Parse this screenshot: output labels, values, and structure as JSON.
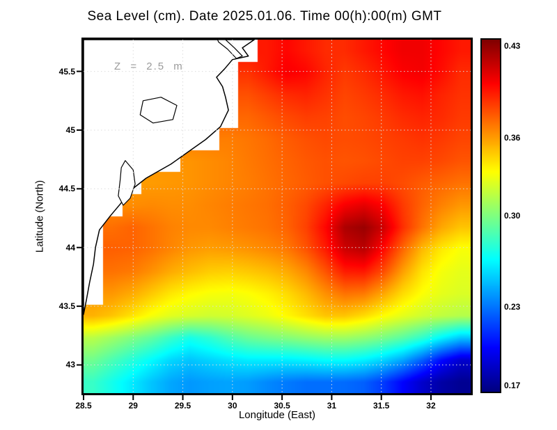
{
  "title": "Sea Level (cm). Date 2025.01.06. Time 00(h):00(m) GMT",
  "annotation": "Z = 2.5 m",
  "chart_data": {
    "type": "heatmap",
    "title": "Sea Level (cm). Date 2025.01.06. Time 00(h):00(m) GMT",
    "xlabel": "Longitude (East)",
    "ylabel": "Latitude (North)",
    "xlim": [
      28.5,
      32.4
    ],
    "ylim": [
      42.76,
      45.77
    ],
    "xticks": [
      28.5,
      29,
      29.5,
      30,
      30.5,
      31,
      31.5,
      32
    ],
    "yticks": [
      43,
      43.5,
      44,
      44.5,
      45,
      45.5
    ],
    "grid": true,
    "colormap": "jet",
    "colorbar": {
      "vmin": 0.165,
      "vmax": 0.435,
      "ticks": [
        0.43,
        0.36,
        0.3,
        0.23,
        0.17
      ]
    },
    "nx": 20,
    "ny": 16,
    "values": [
      [
        null,
        null,
        null,
        null,
        null,
        null,
        null,
        null,
        null,
        0.395,
        0.4,
        0.395,
        0.39,
        0.39,
        0.395,
        0.4,
        0.405,
        0.405,
        0.4,
        0.395
      ],
      [
        null,
        null,
        null,
        null,
        null,
        null,
        null,
        null,
        0.388,
        0.395,
        0.403,
        0.4,
        0.392,
        0.386,
        0.39,
        0.396,
        0.402,
        0.404,
        0.398,
        0.39
      ],
      [
        null,
        null,
        null,
        null,
        null,
        null,
        null,
        null,
        0.38,
        0.385,
        0.39,
        0.392,
        0.388,
        0.383,
        0.386,
        0.39,
        0.395,
        0.397,
        0.392,
        0.388
      ],
      [
        null,
        null,
        null,
        null,
        null,
        null,
        null,
        null,
        0.374,
        0.378,
        0.382,
        0.385,
        0.384,
        0.381,
        0.383,
        0.386,
        0.39,
        0.392,
        0.39,
        0.386
      ],
      [
        null,
        null,
        null,
        null,
        null,
        null,
        null,
        0.368,
        0.37,
        0.373,
        0.377,
        0.38,
        0.382,
        0.381,
        0.382,
        0.384,
        0.386,
        0.388,
        0.386,
        0.383
      ],
      [
        null,
        null,
        null,
        null,
        null,
        0.362,
        0.364,
        0.366,
        0.369,
        0.372,
        0.375,
        0.378,
        0.38,
        0.379,
        0.38,
        0.382,
        0.384,
        0.384,
        0.382,
        0.379
      ],
      [
        null,
        null,
        null,
        0.36,
        0.361,
        0.362,
        0.364,
        0.366,
        0.368,
        0.371,
        0.374,
        0.377,
        0.38,
        0.382,
        0.384,
        0.384,
        0.381,
        0.377,
        0.374,
        0.371
      ],
      [
        null,
        null,
        0.364,
        0.365,
        0.364,
        0.364,
        0.366,
        0.368,
        0.37,
        0.372,
        0.376,
        0.382,
        0.392,
        0.403,
        0.408,
        0.401,
        0.386,
        0.375,
        0.367,
        0.361
      ],
      [
        null,
        0.372,
        0.375,
        0.371,
        0.367,
        0.365,
        0.365,
        0.367,
        0.369,
        0.371,
        0.375,
        0.384,
        0.4,
        0.423,
        0.428,
        0.414,
        0.389,
        0.371,
        0.357,
        0.349
      ],
      [
        null,
        0.376,
        0.375,
        0.371,
        0.366,
        0.361,
        0.359,
        0.36,
        0.362,
        0.365,
        0.369,
        0.379,
        0.394,
        0.414,
        0.419,
        0.399,
        0.374,
        0.352,
        0.339,
        0.332
      ],
      [
        null,
        0.371,
        0.369,
        0.363,
        0.356,
        0.351,
        0.347,
        0.346,
        0.348,
        0.351,
        0.356,
        0.365,
        0.379,
        0.394,
        0.395,
        0.381,
        0.359,
        0.341,
        0.331,
        0.327
      ],
      [
        null,
        0.361,
        0.356,
        0.348,
        0.34,
        0.335,
        0.332,
        0.331,
        0.333,
        0.337,
        0.343,
        0.352,
        0.363,
        0.371,
        0.369,
        0.357,
        0.343,
        0.333,
        0.327,
        0.324
      ],
      [
        0.354,
        0.349,
        0.341,
        0.332,
        0.326,
        0.323,
        0.321,
        0.322,
        0.325,
        0.329,
        0.335,
        0.342,
        0.349,
        0.349,
        0.343,
        0.334,
        0.327,
        0.321,
        0.317,
        0.314
      ],
      [
        0.315,
        0.308,
        0.3,
        0.292,
        0.281,
        0.272,
        0.278,
        0.287,
        0.294,
        0.298,
        0.301,
        0.305,
        0.308,
        0.308,
        0.304,
        0.298,
        0.29,
        0.279,
        0.264,
        0.251
      ],
      [
        0.296,
        0.286,
        0.276,
        0.266,
        0.256,
        0.251,
        0.255,
        0.259,
        0.262,
        0.262,
        0.262,
        0.264,
        0.267,
        0.267,
        0.263,
        0.255,
        0.243,
        0.224,
        0.201,
        0.186
      ],
      [
        0.281,
        0.271,
        0.261,
        0.251,
        0.243,
        0.239,
        0.241,
        0.242,
        0.24,
        0.235,
        0.231,
        0.228,
        0.228,
        0.227,
        0.224,
        0.214,
        0.199,
        0.185,
        0.175,
        0.17
      ]
    ],
    "coastline": [
      [
        30.22,
        45.77
      ],
      [
        30.1,
        45.7
      ],
      [
        30.16,
        45.63
      ],
      [
        30.0,
        45.6
      ],
      [
        29.92,
        45.52
      ],
      [
        29.84,
        45.45
      ],
      [
        29.9,
        45.37
      ],
      [
        29.93,
        45.28
      ],
      [
        29.96,
        45.17
      ],
      [
        29.88,
        45.03
      ],
      [
        29.73,
        44.92
      ],
      [
        29.58,
        44.83
      ],
      [
        29.38,
        44.71
      ],
      [
        29.13,
        44.59
      ],
      [
        28.98,
        44.49
      ],
      [
        28.87,
        44.37
      ],
      [
        28.77,
        44.27
      ],
      [
        28.66,
        44.15
      ],
      [
        28.62,
        44.0
      ],
      [
        28.6,
        43.86
      ],
      [
        28.56,
        43.7
      ],
      [
        28.53,
        43.56
      ],
      [
        28.5,
        43.43
      ]
    ],
    "lakes": [
      [
        [
          29.93,
          45.77
        ],
        [
          30.02,
          45.7
        ],
        [
          30.1,
          45.63
        ],
        [
          30.04,
          45.61
        ],
        [
          29.95,
          45.69
        ],
        [
          29.86,
          45.75
        ],
        [
          29.85,
          45.77
        ]
      ],
      [
        [
          29.1,
          45.25
        ],
        [
          29.28,
          45.28
        ],
        [
          29.44,
          45.21
        ],
        [
          29.4,
          45.09
        ],
        [
          29.2,
          45.06
        ],
        [
          29.07,
          45.13
        ]
      ],
      [
        [
          28.92,
          44.74
        ],
        [
          29.0,
          44.66
        ],
        [
          29.02,
          44.54
        ],
        [
          28.97,
          44.42
        ],
        [
          28.9,
          44.36
        ],
        [
          28.85,
          44.44
        ],
        [
          28.87,
          44.58
        ],
        [
          28.88,
          44.68
        ]
      ]
    ]
  }
}
